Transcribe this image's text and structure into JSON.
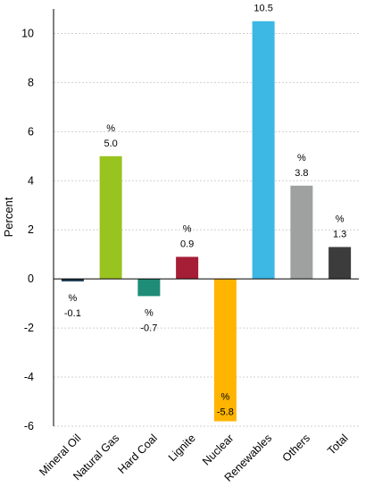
{
  "chart_data": {
    "type": "bar",
    "ylabel": "Percent",
    "ylim": [
      -6,
      11
    ],
    "yticks": [
      -6,
      -4,
      -2,
      0,
      2,
      4,
      6,
      8,
      10
    ],
    "grid": true,
    "categories": [
      "Mineral Oil",
      "Natural Gas",
      "Hard Coal",
      "Lignite",
      "Nuclear",
      "Renewables",
      "Others",
      "Total"
    ],
    "values": [
      -0.1,
      5.0,
      -0.7,
      0.9,
      -5.8,
      10.5,
      3.8,
      1.3
    ],
    "value_unit_label": "%",
    "value_labels": [
      "-0.1",
      "5.0",
      "-0.7",
      "0.9",
      "-5.8",
      "10.5",
      "3.8",
      "1.3"
    ],
    "colors": [
      "#1e3a52",
      "#99c31f",
      "#1f8c78",
      "#a51e36",
      "#ffb400",
      "#3db7e4",
      "#9fa1a1",
      "#3c3c3c"
    ]
  }
}
